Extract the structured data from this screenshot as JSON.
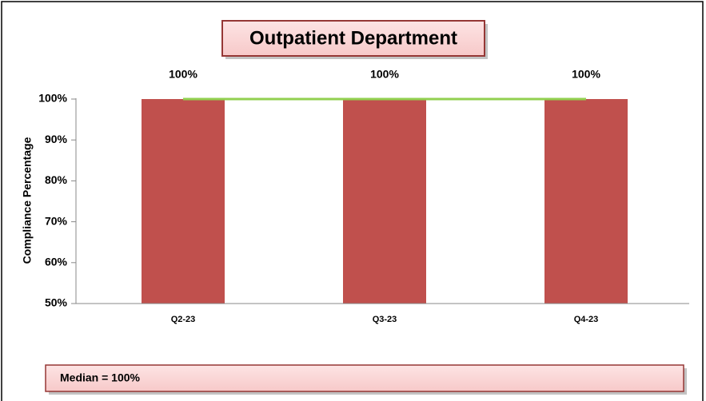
{
  "chart_data": {
    "type": "bar",
    "title": "Outpatient Department",
    "y_axis_label": "Compliance Percentage",
    "categories": [
      "Q2-23",
      "Q3-23",
      "Q4-23"
    ],
    "values": [
      100,
      100,
      100
    ],
    "value_labels": [
      "100%",
      "100%",
      "100%"
    ],
    "color": "#c0504d",
    "ylim": [
      50,
      100
    ],
    "yticks": [
      {
        "value": 50,
        "label": "50%"
      },
      {
        "value": 60,
        "label": "60%"
      },
      {
        "value": 70,
        "label": "70%"
      },
      {
        "value": 80,
        "label": "80%"
      },
      {
        "value": 90,
        "label": "90%"
      },
      {
        "value": 100,
        "label": "100%"
      }
    ],
    "median": {
      "value": 100,
      "label": "Median = 100%",
      "color": "#92d050"
    }
  }
}
